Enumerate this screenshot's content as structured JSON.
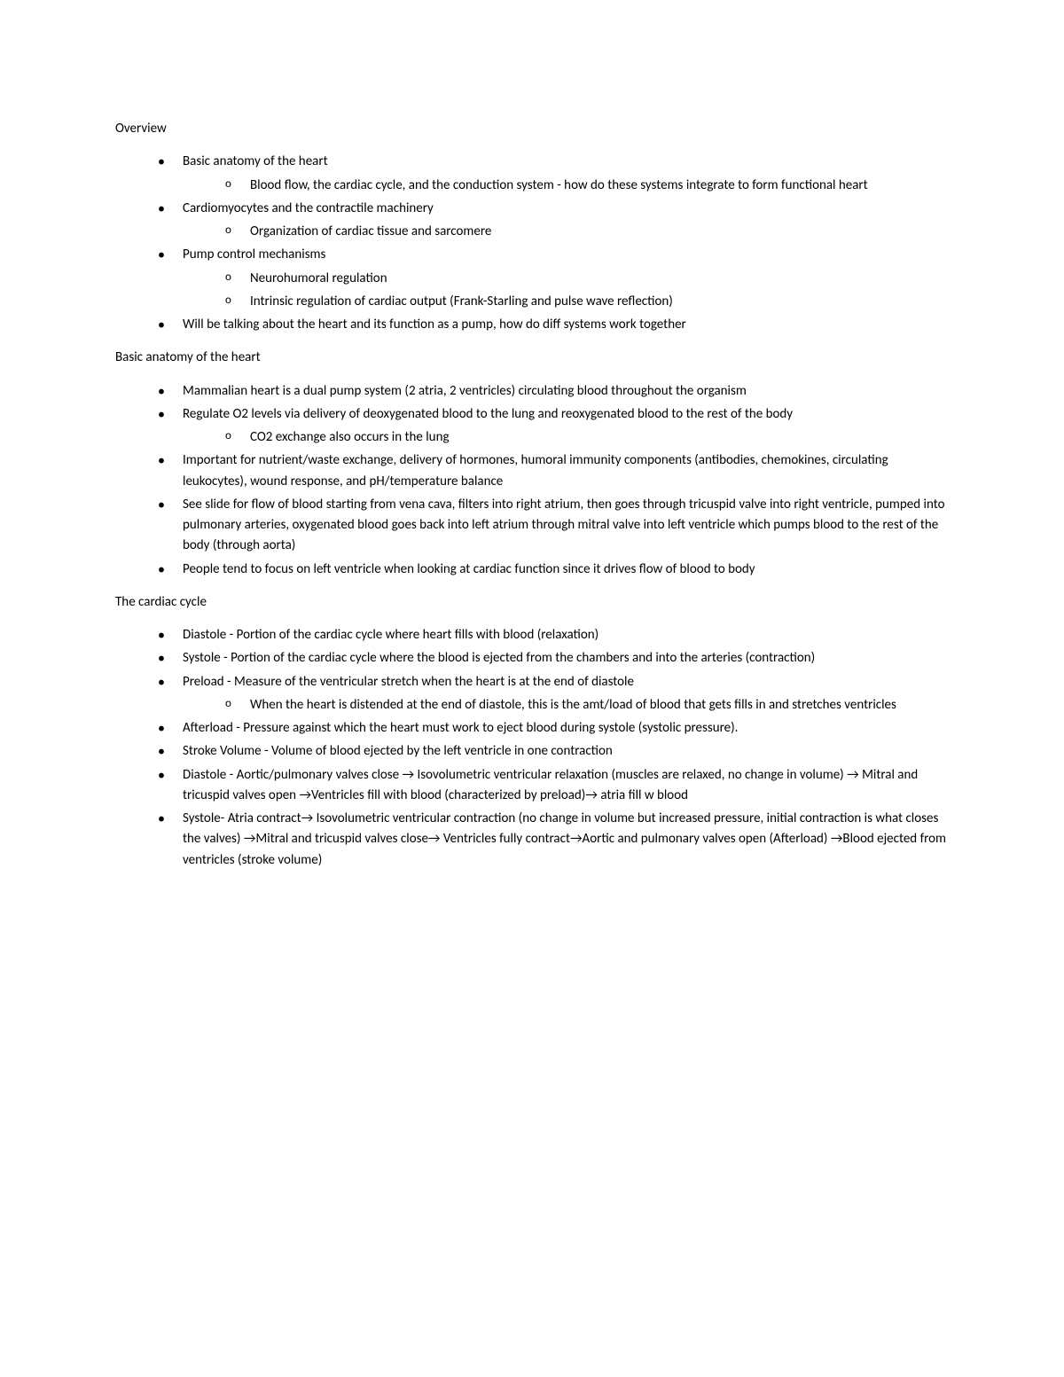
{
  "sections": [
    {
      "heading": "Overview",
      "items": [
        {
          "text": "Basic anatomy of the heart",
          "children": [
            {
              "text": "Blood flow, the cardiac cycle, and the conduction system - how do these systems integrate to form functional heart"
            }
          ]
        },
        {
          "text": "Cardiomyocytes and the contractile machinery",
          "children": [
            {
              "text": "Organization of cardiac tissue and sarcomere"
            }
          ]
        },
        {
          "text": "Pump control mechanisms",
          "children": [
            {
              "text": "Neurohumoral regulation"
            },
            {
              "text": "Intrinsic regulation of cardiac output (Frank-Starling and pulse wave reflection)"
            }
          ]
        },
        {
          "text": "Will be talking about the heart and its function as a pump, how do diff systems work together"
        }
      ]
    },
    {
      "heading": "Basic anatomy of the heart",
      "items": [
        {
          "text": "Mammalian heart is a dual pump system (2 atria, 2 ventricles) circulating blood throughout the organism"
        },
        {
          "text": "Regulate O2 levels via delivery of deoxygenated blood to the lung and reoxygenated blood to the rest of the body",
          "children": [
            {
              "text": "CO2 exchange also occurs in the lung"
            }
          ]
        },
        {
          "text": "Important for nutrient/waste exchange, delivery of hormones, humoral immunity components (antibodies, chemokines, circulating leukocytes), wound response, and pH/temperature balance"
        },
        {
          "text": "See slide for flow of blood starting from vena cava, filters into right atrium, then goes through tricuspid valve into right ventricle, pumped into pulmonary arteries, oxygenated blood goes back into left atrium through mitral valve into left ventricle which pumps blood to the rest of the body (through aorta)"
        },
        {
          "text": "People tend to focus on left ventricle when looking at cardiac function since it drives flow of blood to body"
        }
      ]
    },
    {
      "heading": "The cardiac cycle",
      "items": [
        {
          "text": "Diastole - Portion of the cardiac cycle where heart fills with blood (relaxation)"
        },
        {
          "text": "Systole - Portion of the cardiac cycle where the blood is ejected from the chambers and into the arteries (contraction)"
        },
        {
          "text": "Preload - Measure of the ventricular stretch when the heart is at the end of diastole",
          "children": [
            {
              "text": "When the heart is distended at the end of diastole, this is the amt/load of blood that gets fills in and stretches ventricles"
            }
          ]
        },
        {
          "text": "Afterload - Pressure against which the heart must work to eject blood during systole (systolic pressure)."
        },
        {
          "text": "Stroke Volume - Volume of blood ejected by the left ventricle in one contraction"
        },
        {
          "text": "Diastole - Aortic/pulmonary valves close → Isovolumetric ventricular relaxation (muscles are relaxed, no change in volume) → Mitral and tricuspid valves open →Ventricles fill with blood (characterized by preload)→ atria fill w blood"
        },
        {
          "text": "Systole- Atria contract→ Isovolumetric ventricular contraction (no change in volume but increased pressure, initial contraction is what closes the valves) →Mitral and tricuspid valves close→ Ventricles fully contract→Aortic and pulmonary valves open (Afterload) →Blood ejected from ventricles (stroke volume)"
        }
      ]
    }
  ]
}
